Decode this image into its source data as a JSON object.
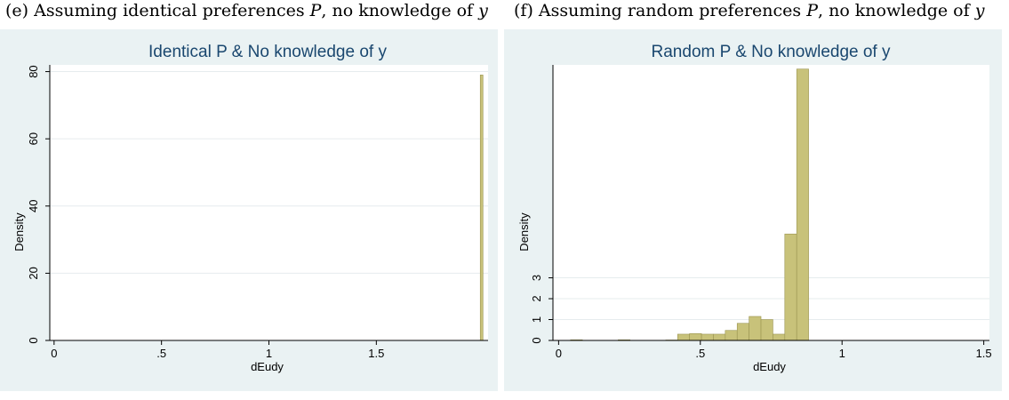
{
  "captions": {
    "e": {
      "prefix": "(e) Assuming identical preferences ",
      "P": "P",
      "middle": ", no knowledge of ",
      "y": "y"
    },
    "f": {
      "prefix": "(f) Assuming random preferences ",
      "P": "P",
      "middle": ", no knowledge of ",
      "y": "y"
    }
  },
  "colors": {
    "panel_bg": "#eaf2f3",
    "plot_bg": "#ffffff",
    "bar_fill": "#c8c27a",
    "bar_stroke": "#9a9450",
    "title": "#1a476f",
    "grid": "#e6ecee"
  },
  "chart_data": [
    {
      "type": "bar",
      "title": "Identical P & No knowledge of y",
      "xlabel": "dEudy",
      "ylabel": "Density",
      "xlim": [
        -0.02,
        2.02
      ],
      "ylim": [
        0,
        82
      ],
      "xticks": [
        0,
        0.5,
        1,
        1.5
      ],
      "xtick_labels": [
        "0",
        ".5",
        "1",
        "1.5"
      ],
      "yticks": [
        0,
        20,
        40,
        60,
        80
      ],
      "ytick_labels": [
        "0",
        "20",
        "40",
        "60",
        "80"
      ],
      "grid": true,
      "bin_width": 0.0125,
      "bins": [
        1.99
      ],
      "values": [
        79
      ]
    },
    {
      "type": "bar",
      "title": "Random P & No knowledge of y",
      "xlabel": "dEudy",
      "ylabel": "Density",
      "xlim": [
        -0.02,
        1.52
      ],
      "ylim": [
        0,
        13.2
      ],
      "xticks": [
        0,
        0.5,
        1,
        1.5
      ],
      "xtick_labels": [
        "0",
        ".5",
        "1",
        "1.5"
      ],
      "yticks": [
        0,
        1,
        2,
        3
      ],
      "ytick_labels": [
        "0",
        "1",
        "2",
        "3"
      ],
      "grid": true,
      "bin_width": 0.042,
      "bins": [
        0.021,
        0.063,
        0.105,
        0.147,
        0.189,
        0.231,
        0.273,
        0.315,
        0.357,
        0.399,
        0.441,
        0.483,
        0.525,
        0.567,
        0.609,
        0.651,
        0.693,
        0.735,
        0.777,
        0.819,
        0.861
      ],
      "values": [
        0,
        0.03,
        0,
        0,
        0,
        0.03,
        0,
        0,
        0,
        0.02,
        0.3,
        0.33,
        0.3,
        0.3,
        0.48,
        0.82,
        1.15,
        1.0,
        0.3,
        5.1,
        13.0
      ]
    }
  ]
}
